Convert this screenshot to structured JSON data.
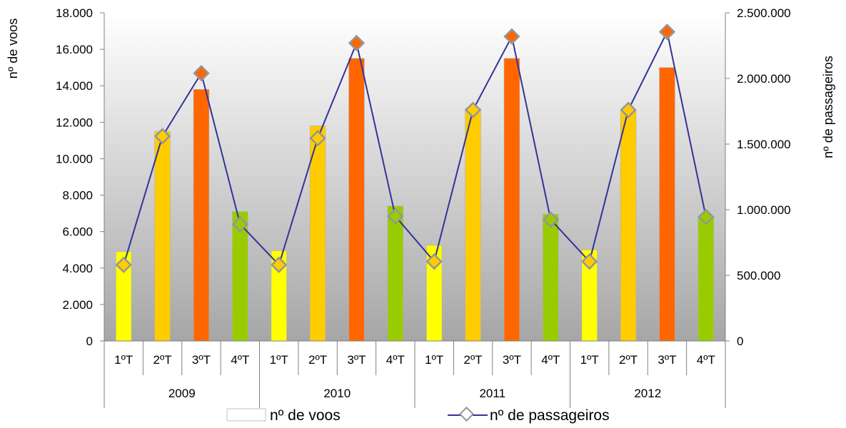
{
  "chart_data": {
    "type": "bar+line",
    "groups": [
      {
        "label": "2009",
        "categories": [
          "1ºT",
          "2ºT",
          "3ºT",
          "4ºT"
        ]
      },
      {
        "label": "2010",
        "categories": [
          "1ºT",
          "2ºT",
          "3ºT",
          "4ºT"
        ]
      },
      {
        "label": "2011",
        "categories": [
          "1ºT",
          "2ºT",
          "3ºT",
          "4ºT"
        ]
      },
      {
        "label": "2012",
        "categories": [
          "1ºT",
          "2ºT",
          "3ºT",
          "4ºT"
        ]
      }
    ],
    "series": [
      {
        "name": "nº de voos",
        "kind": "bar",
        "axis": "left",
        "values": [
          4900,
          11500,
          13800,
          7100,
          4950,
          11800,
          15500,
          7400,
          5250,
          12750,
          15500,
          6950,
          5000,
          12600,
          15000,
          6850
        ],
        "colors_by_quarter": [
          "#ffff00",
          "#ffcc00",
          "#ff6600",
          "#99cc00"
        ]
      },
      {
        "name": "nº de passageiros",
        "kind": "line",
        "axis": "right",
        "values": [
          580000,
          1560000,
          2040000,
          890000,
          580000,
          1545000,
          2270000,
          950000,
          605000,
          1760000,
          2320000,
          925000,
          605000,
          1760000,
          2355000,
          945000
        ],
        "line_color": "#333399",
        "marker_colors_by_quarter": [
          "#ffcc00",
          "#ffcc00",
          "#ff6600",
          "#99cc00"
        ],
        "marker_edge_color": "#969696"
      }
    ],
    "y_left": {
      "label": "nº de voos",
      "range": [
        0,
        18000
      ],
      "ticks": [
        "0",
        "2.000",
        "4.000",
        "6.000",
        "8.000",
        "10.000",
        "12.000",
        "14.000",
        "16.000",
        "18.000"
      ]
    },
    "y_right": {
      "label": "nº de passageiros",
      "range": [
        0,
        2500000
      ],
      "ticks": [
        "0",
        "500.000",
        "1.000.000",
        "1.500.000",
        "2.000.000",
        "2.500.000"
      ]
    },
    "legend": {
      "placement": "bottom",
      "entries": [
        "nº de voos",
        "nº de passageiros"
      ]
    },
    "plot_background": "gradient white to gray (top to bottom)"
  }
}
